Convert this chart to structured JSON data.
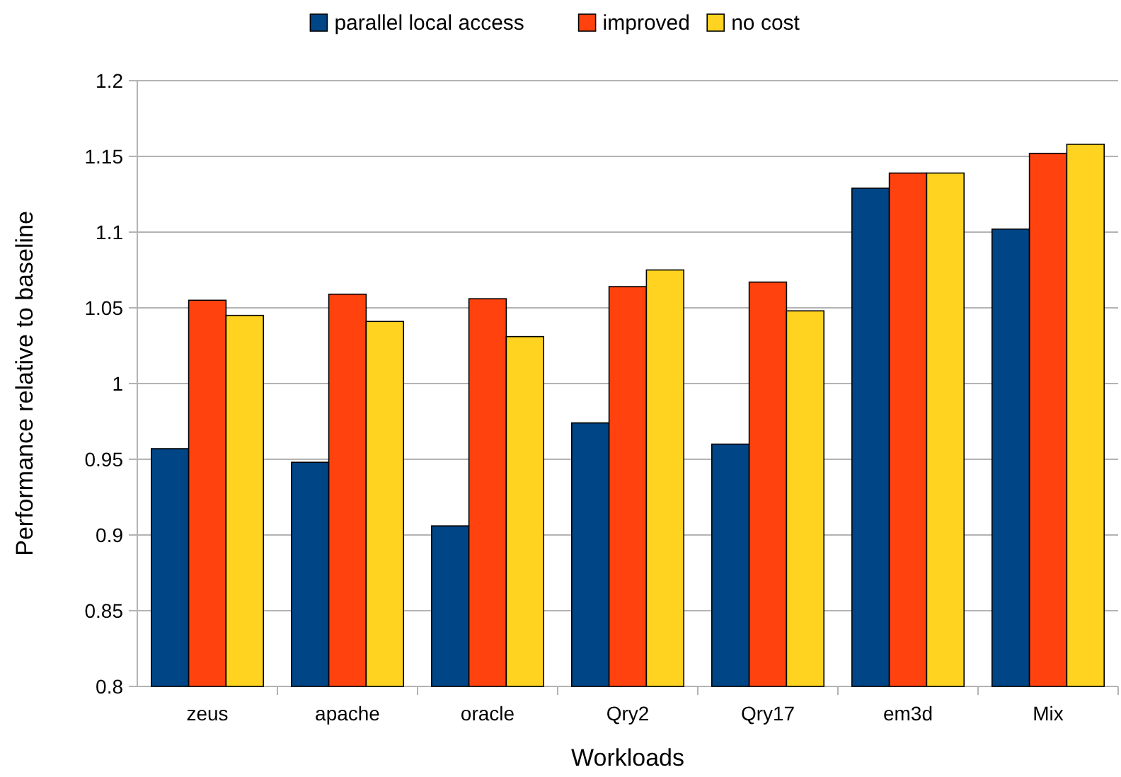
{
  "chart_data": {
    "type": "bar",
    "xlabel": "Workloads",
    "ylabel": "Performance relative to baseline",
    "categories": [
      "zeus",
      "apache",
      "oracle",
      "Qry2",
      "Qry17",
      "em3d",
      "Mix"
    ],
    "series": [
      {
        "name": "parallel local access",
        "color": "#004586",
        "values": [
          0.957,
          0.948,
          0.906,
          0.974,
          0.96,
          1.129,
          1.102
        ]
      },
      {
        "name": "improved",
        "color": "#ff420e",
        "values": [
          1.055,
          1.059,
          1.056,
          1.064,
          1.067,
          1.139,
          1.152
        ]
      },
      {
        "name": "no cost",
        "color": "#ffd320",
        "values": [
          1.045,
          1.041,
          1.031,
          1.075,
          1.048,
          1.139,
          1.158
        ]
      }
    ],
    "ylim": [
      0.8,
      1.2
    ],
    "yticks": [
      0.8,
      0.85,
      0.9,
      0.95,
      1,
      1.05,
      1.1,
      1.15,
      1.2
    ],
    "grid": "y",
    "legend": "top"
  }
}
